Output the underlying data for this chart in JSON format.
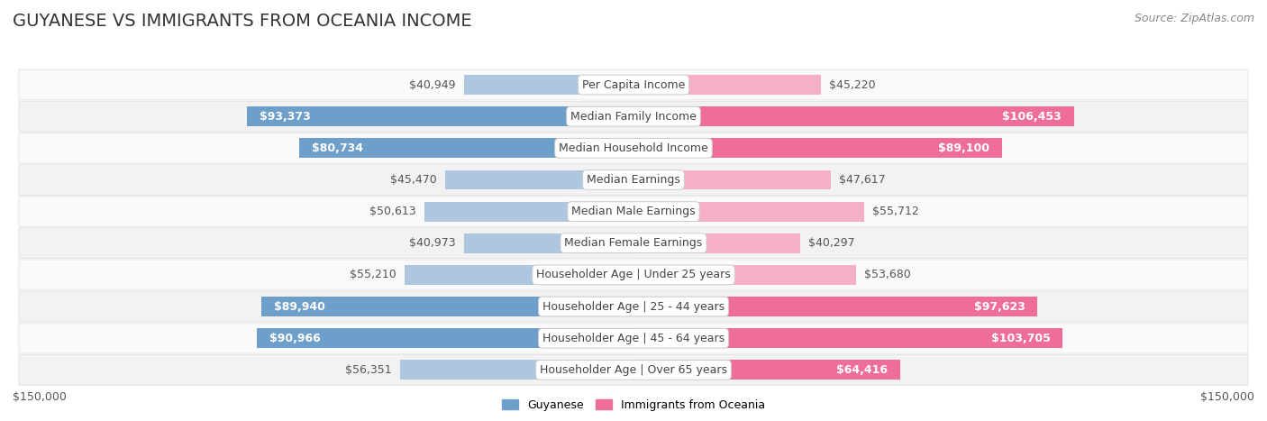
{
  "title": "GUYANESE VS IMMIGRANTS FROM OCEANIA INCOME",
  "source": "Source: ZipAtlas.com",
  "categories": [
    "Per Capita Income",
    "Median Family Income",
    "Median Household Income",
    "Median Earnings",
    "Median Male Earnings",
    "Median Female Earnings",
    "Householder Age | Under 25 years",
    "Householder Age | 25 - 44 years",
    "Householder Age | 45 - 64 years",
    "Householder Age | Over 65 years"
  ],
  "guyanese_values": [
    40949,
    93373,
    80734,
    45470,
    50613,
    40973,
    55210,
    89940,
    90966,
    56351
  ],
  "oceania_values": [
    45220,
    106453,
    89100,
    47617,
    55712,
    40297,
    53680,
    97623,
    103705,
    64416
  ],
  "guyanese_labels": [
    "$40,949",
    "$93,373",
    "$80,734",
    "$45,470",
    "$50,613",
    "$40,973",
    "$55,210",
    "$89,940",
    "$90,966",
    "$56,351"
  ],
  "oceania_labels": [
    "$45,220",
    "$106,453",
    "$89,100",
    "$47,617",
    "$55,712",
    "$40,297",
    "$53,680",
    "$97,623",
    "$103,705",
    "$64,416"
  ],
  "guyanese_color_light": "#aec6e0",
  "guyanese_color_dark": "#6e9fcb",
  "oceania_color_light": "#f5b0c8",
  "oceania_color_dark": "#ee6d99",
  "max_value": 150000,
  "bar_height": 0.62,
  "row_color_odd": "#f2f2f2",
  "row_color_even": "#fafafa",
  "row_border_color": "#dddddd",
  "legend_guyanese": "Guyanese",
  "legend_oceania": "Immigrants from Oceania",
  "axis_label_left": "$150,000",
  "axis_label_right": "$150,000",
  "title_fontsize": 14,
  "source_fontsize": 9,
  "label_fontsize": 9,
  "category_fontsize": 9,
  "guyanese_dark_threshold": 60000,
  "oceania_dark_threshold": 60000
}
